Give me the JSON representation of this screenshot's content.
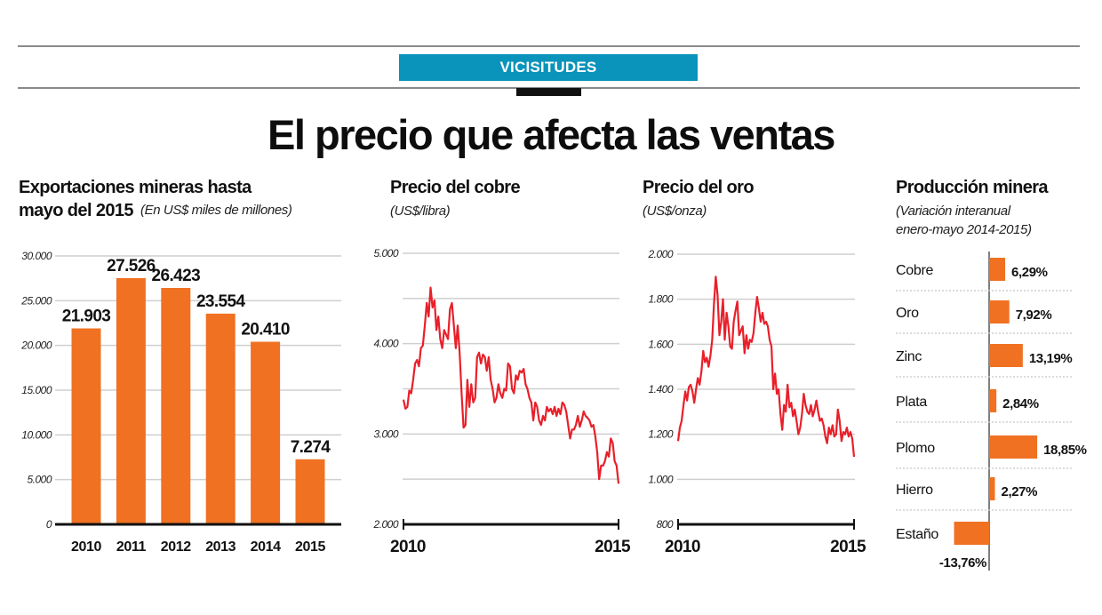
{
  "header": {
    "section_tag": "VICISITUDES",
    "title": "El precio que afecta las ventas",
    "accent_color": "#0a93bb"
  },
  "panels": {
    "exports": {
      "title_line1": "Exportaciones mineras hasta",
      "title_line2": "mayo del 2015",
      "subtitle": "(En US$ miles de millones)"
    },
    "copper": {
      "title": "Precio del cobre",
      "subtitle": "(US$/libra)"
    },
    "gold": {
      "title": "Precio del oro",
      "subtitle": "(US$/onza)"
    },
    "production": {
      "title": "Producción minera",
      "subtitle_line1": "(Variación interanual",
      "subtitle_line2": "enero-mayo 2014-2015)"
    }
  },
  "chart_data": [
    {
      "id": "exports",
      "type": "bar",
      "title": "Exportaciones mineras hasta mayo del 2015",
      "subtitle": "(En US$ miles de millones)",
      "categories": [
        "2010",
        "2011",
        "2012",
        "2013",
        "2014",
        "2015"
      ],
      "values": [
        21903,
        27526,
        26423,
        23554,
        20410,
        7274
      ],
      "value_labels": [
        "21.903",
        "27.526",
        "26.423",
        "23.554",
        "20.410",
        "7.274"
      ],
      "xlabel": "",
      "ylabel": "",
      "ylim": [
        0,
        30000
      ],
      "yticks": [
        0,
        5000,
        10000,
        15000,
        20000,
        25000,
        30000
      ],
      "ytick_labels": [
        "0",
        "5.000",
        "10.000",
        "15.000",
        "20.000",
        "25.000",
        "30.000"
      ],
      "grid": true,
      "color": "#f07122"
    },
    {
      "id": "copper",
      "type": "line",
      "title": "Precio del cobre",
      "subtitle": "(US$/libra)",
      "x_start": 2010,
      "x_end": 2015,
      "xtick_labels": [
        "2010",
        "2015"
      ],
      "ylim": [
        2000,
        5000
      ],
      "yticks": [
        2000,
        2500,
        3000,
        3500,
        4000,
        4500,
        5000
      ],
      "ytick_labels": [
        "2.000",
        "",
        "3.000",
        "",
        "4.000",
        "",
        "5.000"
      ],
      "grid": true,
      "color": "#e8202a",
      "values": [
        3380,
        3280,
        3300,
        3480,
        3450,
        3600,
        3780,
        3820,
        3750,
        3950,
        3980,
        4200,
        4450,
        4300,
        4620,
        4400,
        4480,
        4150,
        4300,
        4050,
        3950,
        4150,
        4100,
        4050,
        4380,
        4450,
        4200,
        3950,
        4200,
        3900,
        3450,
        3070,
        3100,
        3600,
        3300,
        3550,
        3350,
        3400,
        3850,
        3900,
        3780,
        3880,
        3850,
        3700,
        3850,
        3600,
        3500,
        3350,
        3400,
        3550,
        3450,
        3400,
        3500,
        3480,
        3780,
        3750,
        3500,
        3450,
        3650,
        3600,
        3700,
        3680,
        3720,
        3550,
        3500,
        3400,
        3350,
        3150,
        3350,
        3300,
        3150,
        3100,
        3200,
        3150,
        3300,
        3250,
        3280,
        3220,
        3300,
        3200,
        3280,
        3220,
        3350,
        3320,
        3250,
        3100,
        2950,
        3050,
        3050,
        3100,
        3200,
        3080,
        3150,
        3250,
        3200,
        3180,
        3150,
        3080,
        3100,
        2980,
        2800,
        2500,
        2650,
        2650,
        2700,
        2800,
        2750,
        2950,
        2900,
        2700,
        2650,
        2450
      ]
    },
    {
      "id": "gold",
      "type": "line",
      "title": "Precio del oro",
      "subtitle": "(US$/onza)",
      "x_start": 2010,
      "x_end": 2015,
      "xtick_labels": [
        "2010",
        "2015"
      ],
      "ylim": [
        800,
        2000
      ],
      "yticks": [
        800,
        1000,
        1200,
        1400,
        1600,
        1800,
        2000
      ],
      "ytick_labels": [
        "800",
        "1.000",
        "1.200",
        "1.400",
        "1.600",
        "1.800",
        "2.000"
      ],
      "grid": true,
      "color": "#e8202a",
      "values": [
        1170,
        1230,
        1260,
        1330,
        1390,
        1350,
        1410,
        1420,
        1390,
        1340,
        1400,
        1450,
        1420,
        1480,
        1570,
        1520,
        1540,
        1500,
        1550,
        1620,
        1780,
        1900,
        1820,
        1640,
        1700,
        1800,
        1620,
        1740,
        1680,
        1590,
        1580,
        1700,
        1750,
        1790,
        1640,
        1660,
        1680,
        1560,
        1640,
        1580,
        1620,
        1610,
        1650,
        1740,
        1810,
        1760,
        1700,
        1740,
        1690,
        1700,
        1680,
        1620,
        1590,
        1400,
        1470,
        1380,
        1400,
        1290,
        1220,
        1330,
        1300,
        1420,
        1320,
        1340,
        1280,
        1310,
        1260,
        1200,
        1230,
        1290,
        1380,
        1330,
        1300,
        1290,
        1330,
        1280,
        1310,
        1350,
        1300,
        1260,
        1270,
        1240,
        1190,
        1160,
        1230,
        1200,
        1240,
        1190,
        1200,
        1310,
        1260,
        1170,
        1210,
        1200,
        1230,
        1190,
        1210,
        1180,
        1100
      ]
    },
    {
      "id": "production",
      "type": "bar",
      "orientation": "horizontal",
      "title": "Producción minera",
      "subtitle": "(Variación interanual enero-mayo 2014-2015)",
      "categories": [
        "Cobre",
        "Oro",
        "Zinc",
        "Plata",
        "Plomo",
        "Hierro",
        "Estaño"
      ],
      "values": [
        6.29,
        7.92,
        13.19,
        2.84,
        18.85,
        2.27,
        -13.76
      ],
      "value_labels": [
        "6,29%",
        "7,92%",
        "13,19%",
        "2,84%",
        "18,85%",
        "2,27%",
        "-13,76%"
      ],
      "unit": "%",
      "grid": false,
      "color": "#f07122"
    }
  ]
}
